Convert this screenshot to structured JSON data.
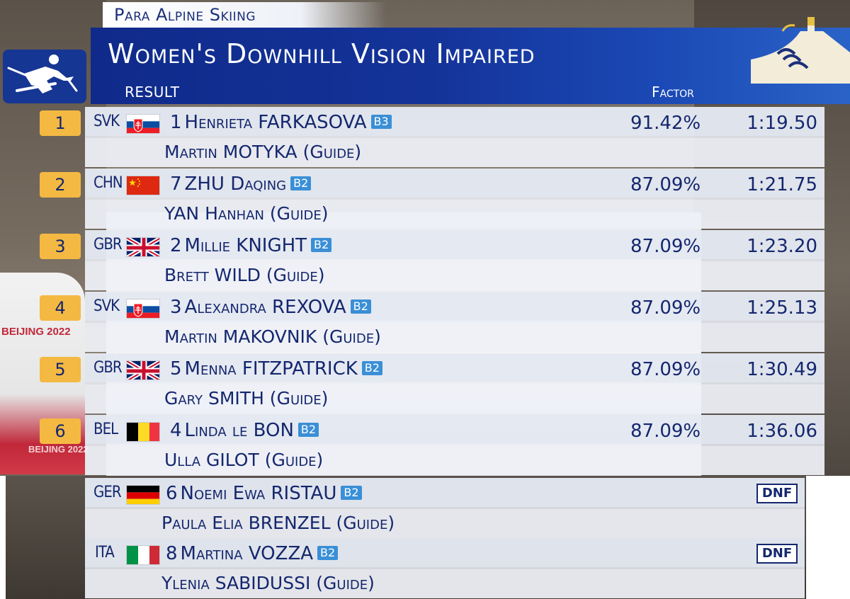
{
  "header": {
    "sport": "Para Alpine Skiing",
    "event": "Women's Downhill Vision Impaired",
    "result_label": "RESULT",
    "factor_label": "Factor"
  },
  "background": {
    "venue_text": "BEIJING 2022",
    "venue_text2": "BEIJING 2022"
  },
  "icons": {
    "sport_icon": "para-alpine-skier-icon",
    "logo": "agitos-great-wall-logo"
  },
  "colors": {
    "title_blue": "#143399",
    "rank_gold": "#f4b942",
    "class_badge": "#3a8fd6",
    "text_navy": "#14276e"
  },
  "results": [
    {
      "rank": "1",
      "noc": "SVK",
      "bib": "1",
      "athlete": "Henrieta FARKASOVA",
      "class": "B3",
      "guide": "Martin MOTYKA (Guide)",
      "factor": "91.42%",
      "time": "1:19.50",
      "flag": "svk"
    },
    {
      "rank": "2",
      "noc": "CHN",
      "bib": "7",
      "athlete": "ZHU Daqing",
      "class": "B2",
      "guide": "YAN Hanhan (Guide)",
      "factor": "87.09%",
      "time": "1:21.75",
      "flag": "chn"
    },
    {
      "rank": "3",
      "noc": "GBR",
      "bib": "2",
      "athlete": "Millie KNIGHT",
      "class": "B2",
      "guide": "Brett WILD (Guide)",
      "factor": "87.09%",
      "time": "1:23.20",
      "flag": "gbr"
    },
    {
      "rank": "4",
      "noc": "SVK",
      "bib": "3",
      "athlete": "Alexandra REXOVA",
      "class": "B2",
      "guide": "Martin MAKOVNIK (Guide)",
      "factor": "87.09%",
      "time": "1:25.13",
      "flag": "svk"
    },
    {
      "rank": "5",
      "noc": "GBR",
      "bib": "5",
      "athlete": "Menna FITZPATRICK",
      "class": "B2",
      "guide": "Gary SMITH (Guide)",
      "factor": "87.09%",
      "time": "1:30.49",
      "flag": "gbr"
    },
    {
      "rank": "6",
      "noc": "BEL",
      "bib": "4",
      "athlete": "Linda le BON",
      "class": "B2",
      "guide": "Ulla GILOT (Guide)",
      "factor": "87.09%",
      "time": "1:36.06",
      "flag": "bel"
    },
    {
      "noc": "GER",
      "bib": "6",
      "athlete": "Noemi Ewa RISTAU",
      "class": "B2",
      "guide": "Paula Elia BRENZEL (Guide)",
      "status": "DNF",
      "flag": "ger"
    },
    {
      "noc": "ITA",
      "bib": "8",
      "athlete": "Martina VOZZA",
      "class": "B2",
      "guide": "Ylenia SABIDUSSI (Guide)",
      "status": "DNF",
      "flag": "ita"
    }
  ]
}
